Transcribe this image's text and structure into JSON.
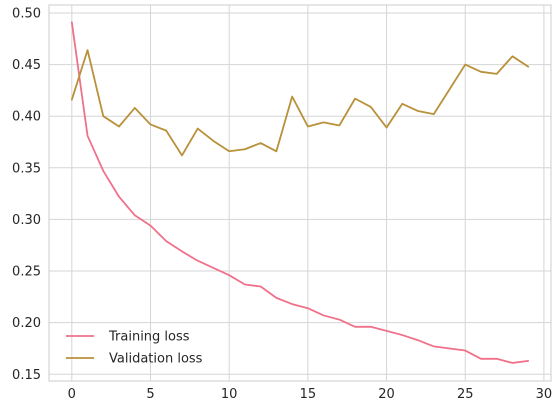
{
  "chart_data": {
    "type": "line",
    "title": "",
    "xlabel": "",
    "ylabel": "",
    "xlim": [
      -1.45,
      30.45
    ],
    "ylim": [
      0.1435,
      0.5077
    ],
    "grid": true,
    "legend_placement": "lower-left",
    "xticks": [
      0,
      5,
      10,
      15,
      20,
      25,
      30
    ],
    "xtick_labels": [
      "0",
      "5",
      "10",
      "15",
      "20",
      "25",
      "30"
    ],
    "yticks": [
      0.15,
      0.2,
      0.25,
      0.3,
      0.35,
      0.4,
      0.45,
      0.5
    ],
    "ytick_labels": [
      "0.15",
      "0.20",
      "0.25",
      "0.30",
      "0.35",
      "0.40",
      "0.45",
      "0.50"
    ],
    "x": [
      0,
      1,
      2,
      3,
      4,
      5,
      6,
      7,
      8,
      9,
      10,
      11,
      12,
      13,
      14,
      15,
      16,
      17,
      18,
      19,
      20,
      21,
      22,
      23,
      24,
      25,
      26,
      27,
      28,
      29
    ],
    "series": [
      {
        "name": "Training loss",
        "color": "#f0718a",
        "values": [
          0.491,
          0.381,
          0.347,
          0.322,
          0.304,
          0.294,
          0.279,
          0.269,
          0.26,
          0.253,
          0.246,
          0.237,
          0.235,
          0.224,
          0.218,
          0.214,
          0.207,
          0.203,
          0.196,
          0.196,
          0.192,
          0.188,
          0.183,
          0.177,
          0.175,
          0.173,
          0.165,
          0.165,
          0.161,
          0.163
        ]
      },
      {
        "name": "Validation loss",
        "color": "#b8913a",
        "values": [
          0.416,
          0.464,
          0.4,
          0.39,
          0.408,
          0.392,
          0.386,
          0.362,
          0.388,
          0.376,
          0.366,
          0.368,
          0.374,
          0.366,
          0.419,
          0.39,
          0.394,
          0.391,
          0.417,
          0.409,
          0.389,
          0.412,
          0.405,
          0.402,
          0.426,
          0.45,
          0.443,
          0.441,
          0.458,
          0.448
        ]
      }
    ]
  }
}
